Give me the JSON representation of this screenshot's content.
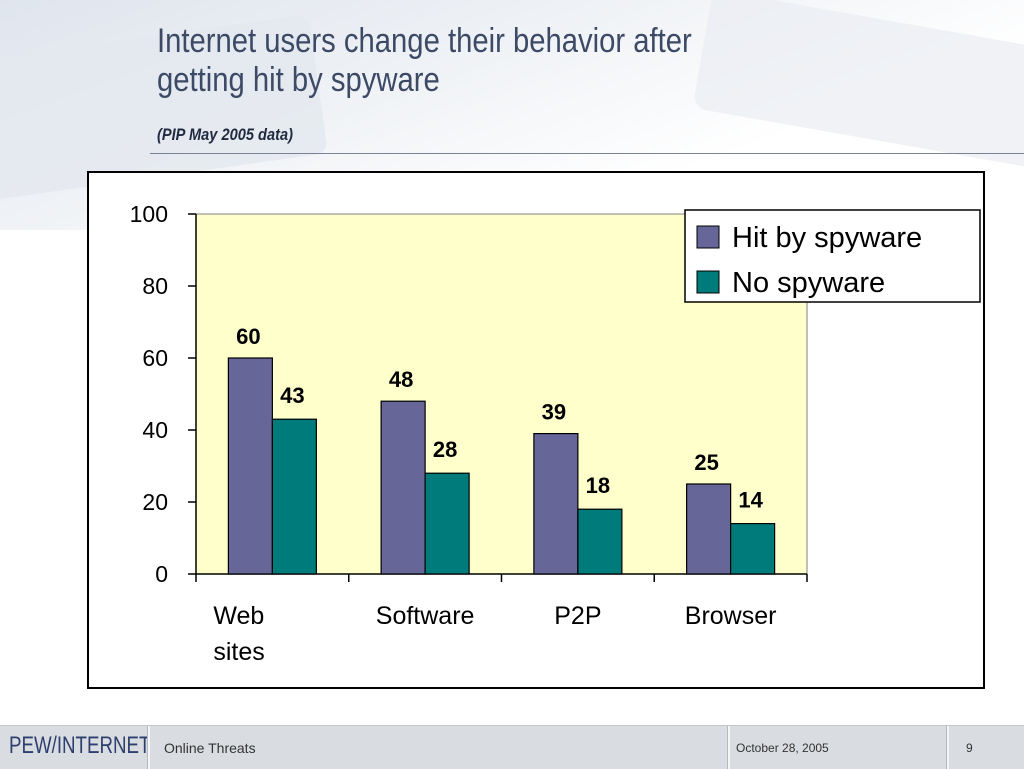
{
  "slide": {
    "title_line1": "Internet users change their behavior after",
    "title_line2": "getting hit by spyware",
    "subtitle": "(PIP May 2005 data)"
  },
  "footer": {
    "logo": "PEW/INTERNET",
    "section": "Online Threats",
    "date": "October 28, 2005",
    "page": "9"
  },
  "colors": {
    "hit": "#666699",
    "no": "#007b7b",
    "plot_bg": "#ffffcc"
  },
  "chart_data": {
    "type": "bar",
    "categories": [
      [
        "Web",
        "sites"
      ],
      [
        "Software"
      ],
      [
        "P2P"
      ],
      [
        "Browser"
      ]
    ],
    "series": [
      {
        "name": "Hit by spyware",
        "values": [
          60,
          48,
          39,
          25
        ]
      },
      {
        "name": "No spyware",
        "values": [
          43,
          28,
          18,
          14
        ]
      }
    ],
    "yticks": [
      "0",
      "20",
      "40",
      "60",
      "80",
      "100"
    ],
    "ylim": [
      0,
      100
    ],
    "grid": false,
    "legend_position": "top-right",
    "data_labels": true
  }
}
